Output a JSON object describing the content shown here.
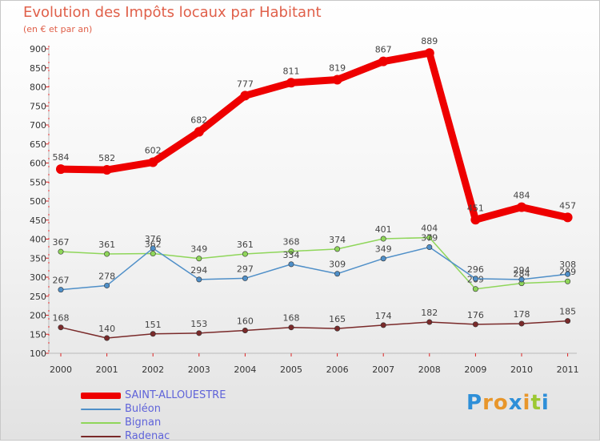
{
  "header": {
    "title": "Evolution des Impôts locaux par Habitant",
    "subtitle": "(en € et par an)"
  },
  "chart_data": {
    "type": "line",
    "title": "Evolution des Impôts locaux par Habitant",
    "subtitle": "(en € et par an)",
    "xlabel": "",
    "ylabel": "",
    "categories": [
      "2000",
      "2001",
      "2002",
      "2003",
      "2004",
      "2005",
      "2006",
      "2007",
      "2008",
      "2009",
      "2010",
      "2011"
    ],
    "yticks": [
      100,
      150,
      200,
      250,
      300,
      350,
      400,
      450,
      500,
      550,
      600,
      650,
      700,
      750,
      800,
      850,
      900
    ],
    "ylim": [
      100,
      900
    ],
    "grid": false,
    "legend_position": "bottom-left",
    "series": [
      {
        "name": "SAINT-ALLOUESTRE",
        "color": "#ee0000",
        "width": 9,
        "values": [
          584,
          582,
          602,
          682,
          777,
          811,
          819,
          867,
          889,
          451,
          484,
          457
        ]
      },
      {
        "name": "Buléon",
        "color": "#4f8fc8",
        "width": 1.5,
        "values": [
          267,
          278,
          376,
          294,
          297,
          334,
          309,
          349,
          379,
          296,
          294,
          308
        ]
      },
      {
        "name": "Bignan",
        "color": "#8fd65a",
        "width": 1.5,
        "values": [
          367,
          361,
          362,
          349,
          361,
          368,
          374,
          401,
          404,
          269,
          284,
          289
        ]
      },
      {
        "name": "Radenac",
        "color": "#7a2a2a",
        "width": 1.5,
        "values": [
          168,
          140,
          151,
          153,
          160,
          168,
          165,
          174,
          182,
          176,
          178,
          185
        ]
      }
    ]
  },
  "logo": {
    "text": "Proxiti",
    "colors": [
      "#2e8fd8",
      "#e8962a",
      "#e8962a",
      "#2e8fd8",
      "#e8962a",
      "#9cc832",
      "#2e8fd8"
    ]
  }
}
